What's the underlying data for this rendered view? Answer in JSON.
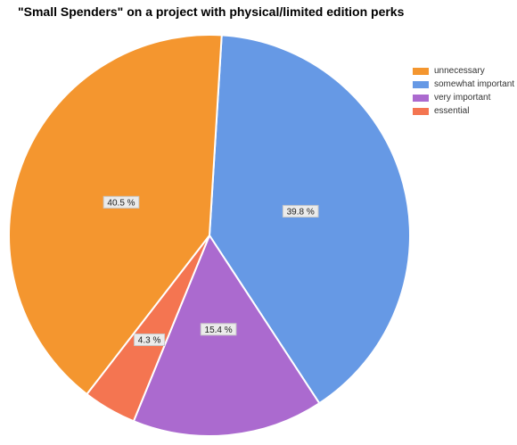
{
  "chart_data": {
    "type": "pie",
    "title": "\"Small Spenders\" on a project with physical/limited edition perks",
    "legend_position": "right",
    "start_angle_deg": 86.5,
    "direction": "clockwise",
    "slices": [
      {
        "name": "somewhat important",
        "value": 39.8,
        "label": "39.8 %",
        "color": "#6699e5"
      },
      {
        "name": "very important",
        "value": 15.4,
        "label": "15.4 %",
        "color": "#ab6acf"
      },
      {
        "name": "essential",
        "value": 4.3,
        "label": "4.3 %",
        "color": "#f47551"
      },
      {
        "name": "unnecessary",
        "value": 40.5,
        "label": "40.5 %",
        "color": "#f4962f"
      }
    ],
    "legend": [
      {
        "label": "unnecessary",
        "color": "#f4962f"
      },
      {
        "label": "somewhat important",
        "color": "#6699e5"
      },
      {
        "label": "very important",
        "color": "#ab6acf"
      },
      {
        "label": "essential",
        "color": "#f47551"
      }
    ]
  }
}
